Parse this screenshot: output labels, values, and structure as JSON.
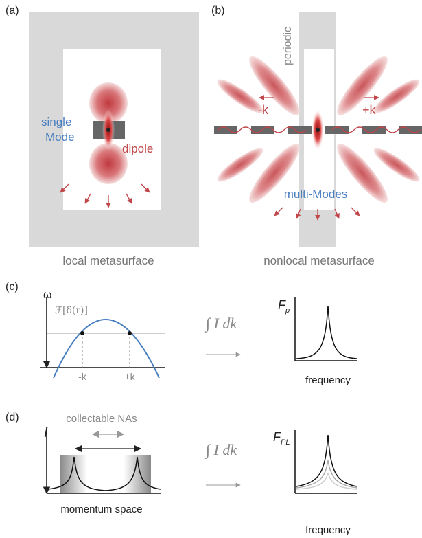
{
  "panel_a": {
    "label": "(a)",
    "mode_label": [
      "single",
      "Mode"
    ],
    "dipole_label": "dipole",
    "caption": "local metasurface"
  },
  "panel_b": {
    "label": "(b)",
    "periodic_label": "periodic",
    "minus_k": "-k",
    "plus_k": "+k",
    "modes_label": "multi-Modes",
    "caption": "nonlocal metasurface"
  },
  "panel_c": {
    "label": "(c)",
    "y_axis": "ω",
    "fourier_label": "ℱ[δ(r)]",
    "minus_k": "-k",
    "plus_k": "+k",
    "integral": "∫ I dk",
    "fp_label": {
      "main": "F",
      "sub": "p"
    },
    "x_axis": "frequency"
  },
  "panel_d": {
    "label": "(d)",
    "y_axis": "I",
    "na_label": "collectable NAs",
    "x_axis_left": "momentum space",
    "integral": "∫ I dk",
    "fpl_label": {
      "main": "F",
      "sub": "PL"
    },
    "x_axis": "frequency"
  }
}
